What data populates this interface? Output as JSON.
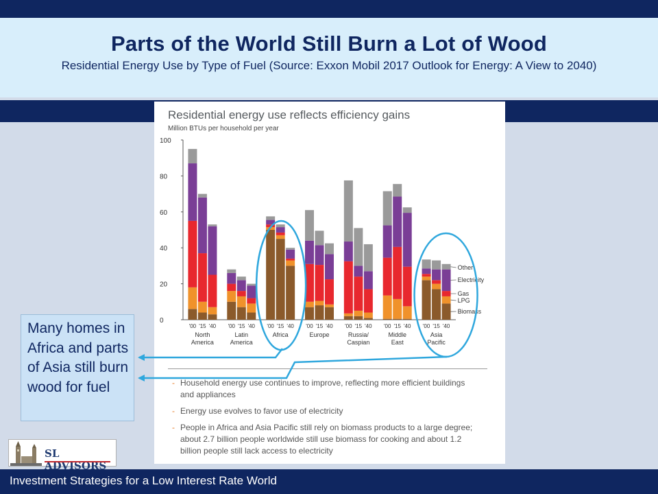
{
  "slide": {
    "title": "Parts of the World Still Burn a Lot of Wood",
    "subtitle": "Residential Energy Use by Type of Fuel (Source: Exxon Mobil 2017 Outlook for Energy: A View to 2040)"
  },
  "figure": {
    "title": "Residential energy use reflects efficiency gains",
    "unit_label": "Million BTUs per household per year",
    "notes": [
      "Household energy use continues to improve, reflecting more efficient buildings and appliances",
      "Energy use evolves to favor use of electricity",
      "People in Africa and Asia Pacific still rely on biomass products to a large degree; about 2.7 billion people worldwide still use biomass for cooking and about 1.2 billion people still lack access to electricity"
    ],
    "note_marker": "-"
  },
  "callout": {
    "text": "Many homes in Africa and parts of Asia still burn wood for fuel"
  },
  "logo": {
    "text": "SL ADVISORS"
  },
  "footer": {
    "text": "Investment Strategies for a Low Interest Rate World"
  },
  "colors": {
    "navy": "#0f2660",
    "biomass": "#8b5a2b",
    "lpg": "#f0922b",
    "gas": "#e8282e",
    "electricity": "#7a3e96",
    "other": "#9a9a9a",
    "highlight": "#2fa7dd"
  },
  "chart_data": {
    "type": "bar",
    "stacked": true,
    "title": "Residential energy use reflects efficiency gains",
    "ylabel": "Million BTUs per household per year",
    "ylim": [
      0,
      100
    ],
    "yticks": [
      0,
      20,
      40,
      60,
      80,
      100
    ],
    "years": [
      "'00",
      "'15",
      "'40"
    ],
    "regions": [
      "North America",
      "Latin America",
      "Africa",
      "Europe",
      "Russia/ Caspian",
      "Middle East",
      "Asia Pacific"
    ],
    "series_order": [
      "Biomass",
      "LPG",
      "Gas",
      "Electricity",
      "Other"
    ],
    "legend": [
      "Other",
      "Electricity",
      "Gas",
      "LPG",
      "Biomass"
    ],
    "legend_position": "right",
    "groups": [
      {
        "region": "North America",
        "bars": [
          {
            "Biomass": 6,
            "LPG": 12,
            "Gas": 37,
            "Electricity": 32,
            "Other": 8
          },
          {
            "Biomass": 4,
            "LPG": 6,
            "Gas": 27,
            "Electricity": 31,
            "Other": 2
          },
          {
            "Biomass": 3,
            "LPG": 4,
            "Gas": 18,
            "Electricity": 27,
            "Other": 1
          }
        ]
      },
      {
        "region": "Latin America",
        "bars": [
          {
            "Biomass": 10,
            "LPG": 6,
            "Gas": 4,
            "Electricity": 6,
            "Other": 2
          },
          {
            "Biomass": 7,
            "LPG": 6,
            "Gas": 3,
            "Electricity": 6,
            "Other": 2
          },
          {
            "Biomass": 4,
            "LPG": 5,
            "Gas": 3,
            "Electricity": 7,
            "Other": 1
          }
        ]
      },
      {
        "region": "Africa",
        "bars": [
          {
            "Biomass": 50,
            "LPG": 1.5,
            "Gas": 1.5,
            "Electricity": 2.5,
            "Other": 2
          },
          {
            "Biomass": 45,
            "LPG": 2,
            "Gas": 1.5,
            "Electricity": 3,
            "Other": 1.5
          },
          {
            "Biomass": 30,
            "LPG": 3,
            "Gas": 1,
            "Electricity": 5,
            "Other": 1
          }
        ]
      },
      {
        "region": "Europe",
        "bars": [
          {
            "Biomass": 7,
            "LPG": 3,
            "Gas": 21,
            "Electricity": 13,
            "Other": 17
          },
          {
            "Biomass": 8,
            "LPG": 2.5,
            "Gas": 20,
            "Electricity": 11,
            "Other": 8
          },
          {
            "Biomass": 7,
            "LPG": 1.5,
            "Gas": 14,
            "Electricity": 14,
            "Other": 6
          }
        ]
      },
      {
        "region": "Russia/ Caspian",
        "bars": [
          {
            "Biomass": 2,
            "LPG": 1.5,
            "Gas": 29,
            "Electricity": 11,
            "Other": 34
          },
          {
            "Biomass": 2,
            "LPG": 3,
            "Gas": 19,
            "Electricity": 6,
            "Other": 21
          },
          {
            "Biomass": 1,
            "LPG": 3,
            "Gas": 13,
            "Electricity": 10,
            "Other": 15
          }
        ]
      },
      {
        "region": "Middle East",
        "bars": [
          {
            "Biomass": 0.5,
            "LPG": 13,
            "Gas": 21,
            "Electricity": 18,
            "Other": 19
          },
          {
            "Biomass": 0.5,
            "LPG": 11,
            "Gas": 29,
            "Electricity": 28,
            "Other": 7
          },
          {
            "Biomass": 0.5,
            "LPG": 7,
            "Gas": 22,
            "Electricity": 30,
            "Other": 3
          }
        ]
      },
      {
        "region": "Asia Pacific",
        "bars": [
          {
            "Biomass": 22,
            "LPG": 2,
            "Gas": 1.5,
            "Electricity": 3,
            "Other": 5
          },
          {
            "Biomass": 17,
            "LPG": 3,
            "Gas": 2,
            "Electricity": 6,
            "Other": 5
          },
          {
            "Biomass": 9,
            "LPG": 4,
            "Gas": 3,
            "Electricity": 12,
            "Other": 3
          }
        ]
      }
    ],
    "highlighted_regions": [
      "Africa",
      "Asia Pacific"
    ]
  }
}
